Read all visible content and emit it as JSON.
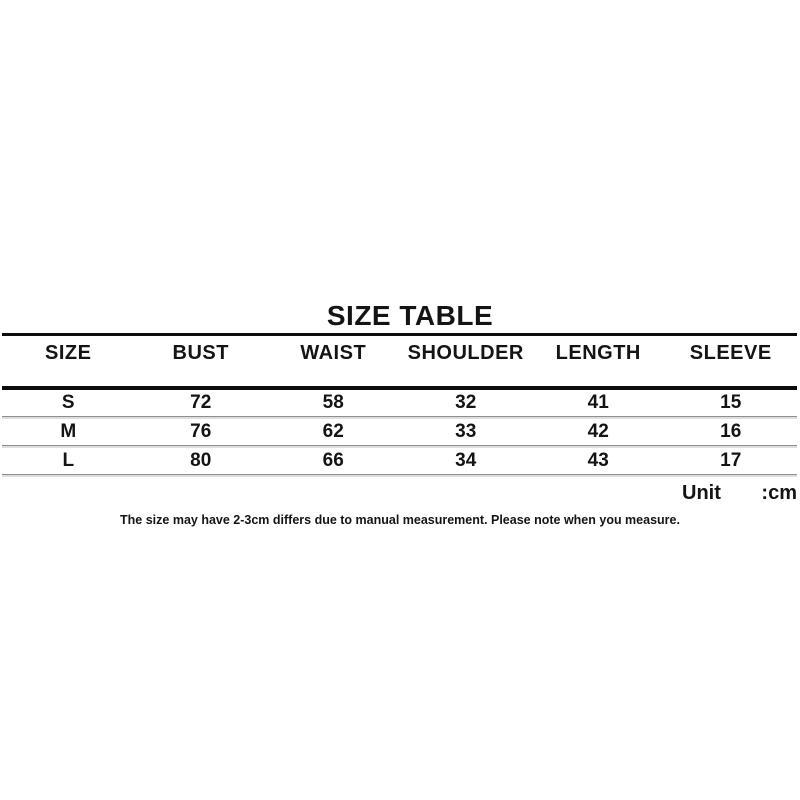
{
  "chart_data": {
    "type": "table",
    "title": "SIZE TABLE",
    "columns": [
      "SIZE",
      "BUST",
      "WAIST",
      "SHOULDER",
      "LENGTH",
      "SLEEVE"
    ],
    "rows": [
      [
        "S",
        "72",
        "58",
        "32",
        "41",
        "15"
      ],
      [
        "M",
        "76",
        "62",
        "33",
        "42",
        "16"
      ],
      [
        "L",
        "80",
        "66",
        "34",
        "43",
        "17"
      ]
    ],
    "unit": "cm",
    "note": "The size may have 2-3cm differs due to manual measurement. Please note when you measure."
  },
  "unit_row": {
    "label": "Unit",
    "value": ":cm"
  },
  "colors": {
    "background": "#ffffff",
    "text": "#141414",
    "heavy_rule": "#0d0d0d",
    "row_divider_dark": "#8e8e8e",
    "row_divider_light": "#dedede"
  }
}
